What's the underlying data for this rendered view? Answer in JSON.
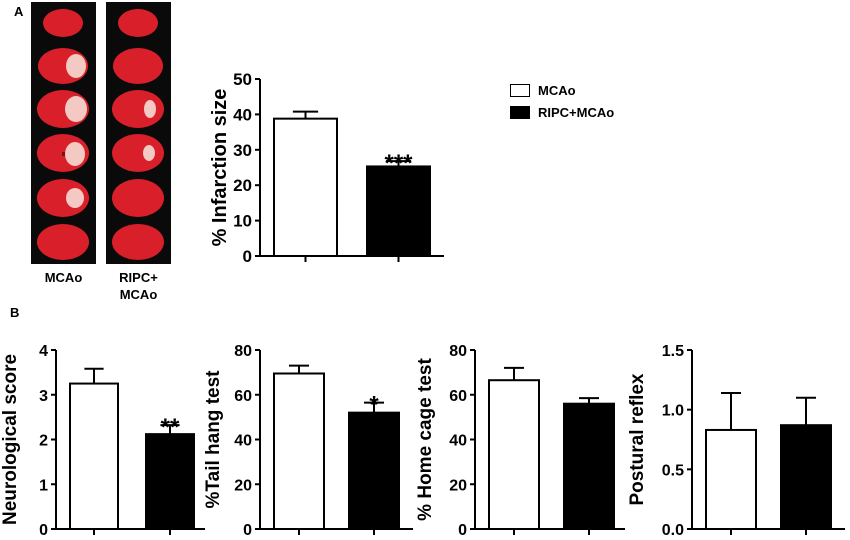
{
  "panels": {
    "a": "A",
    "b": "B"
  },
  "brain_images": {
    "left_label": "MCAo",
    "right_label_line1": "RIPC+",
    "right_label_line2": "MCAo"
  },
  "legend": [
    {
      "label": "MCAo",
      "color": "#ffffff"
    },
    {
      "label": "RIPC+MCAo",
      "color": "#000000"
    }
  ],
  "chart_data": [
    {
      "type": "bar",
      "ylabel": "% Infarction size",
      "ylim": [
        0,
        50
      ],
      "yticks": [
        "0",
        "10",
        "20",
        "30",
        "40",
        "50"
      ],
      "series": [
        {
          "name": "MCAo",
          "value": 38.8,
          "error": 2.0,
          "fill": "#ffffff"
        },
        {
          "name": "RIPC+MCAo",
          "value": 25.3,
          "error": 1.5,
          "fill": "#000000"
        }
      ],
      "significance": [
        "",
        "***"
      ]
    },
    {
      "type": "bar",
      "ylabel": "Neurological score",
      "ylim": [
        0,
        4
      ],
      "yticks": [
        "0",
        "1",
        "2",
        "3",
        "4"
      ],
      "series": [
        {
          "name": "MCAo",
          "value": 3.25,
          "error": 0.33,
          "fill": "#ffffff"
        },
        {
          "name": "RIPC+MCAo",
          "value": 2.12,
          "error": 0.2,
          "fill": "#000000"
        }
      ],
      "significance": [
        "",
        "**"
      ]
    },
    {
      "type": "bar",
      "ylabel": "%Tail hang test",
      "ylim": [
        0,
        80
      ],
      "yticks": [
        "0",
        "20",
        "40",
        "60",
        "80"
      ],
      "series": [
        {
          "name": "MCAo",
          "value": 69.5,
          "error": 3.5,
          "fill": "#ffffff"
        },
        {
          "name": "RIPC+MCAo",
          "value": 52,
          "error": 4.5,
          "fill": "#000000"
        }
      ],
      "significance": [
        "",
        "*"
      ]
    },
    {
      "type": "bar",
      "ylabel": "% Home cage test",
      "ylim": [
        0,
        80
      ],
      "yticks": [
        "0",
        "20",
        "40",
        "60",
        "80"
      ],
      "series": [
        {
          "name": "MCAo",
          "value": 66.5,
          "error": 5.5,
          "fill": "#ffffff"
        },
        {
          "name": "RIPC+MCAo",
          "value": 56,
          "error": 2.5,
          "fill": "#000000"
        }
      ],
      "significance": [
        "",
        ""
      ]
    },
    {
      "type": "bar",
      "ylabel": "Postural reflex",
      "ylim": [
        0,
        1.5
      ],
      "yticks": [
        "0.0",
        "0.5",
        "1.0",
        "1.5"
      ],
      "series": [
        {
          "name": "MCAo",
          "value": 0.83,
          "error": 0.31,
          "fill": "#ffffff"
        },
        {
          "name": "RIPC+MCAo",
          "value": 0.87,
          "error": 0.23,
          "fill": "#000000"
        }
      ],
      "significance": [
        "",
        ""
      ]
    }
  ]
}
